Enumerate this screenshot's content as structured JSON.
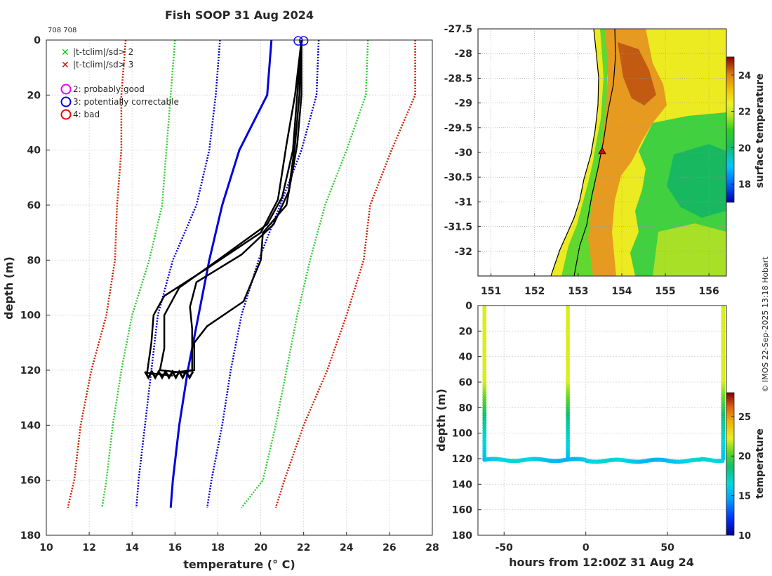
{
  "figure": {
    "title": "Fish SOOP 31 Aug 2024",
    "id_label": "708 708",
    "credit": "© IMOS 22-Sep-2025 13:18 Hobart"
  },
  "chart_data": [
    {
      "name": "profile",
      "type": "line",
      "xlabel": "temperature (° C)",
      "ylabel": "depth (m)",
      "xlim": [
        10,
        28
      ],
      "ylim": [
        180,
        0
      ],
      "xticks": [
        "10",
        "12",
        "14",
        "16",
        "18",
        "20",
        "22",
        "24",
        "26",
        "28"
      ],
      "yticks": [
        "0",
        "20",
        "40",
        "60",
        "80",
        "100",
        "120",
        "140",
        "160",
        "180"
      ],
      "legend": [
        {
          "symbol": "x",
          "color": "#00cc00",
          "label": "|t-tclim|/sd> 2"
        },
        {
          "symbol": "x",
          "color": "#dd0000",
          "label": "|t-tclim|/sd> 3"
        },
        {
          "symbol": "o",
          "color": "#ee00ee",
          "label": "2: probably good"
        },
        {
          "symbol": "o",
          "color": "#0000dd",
          "label": "3: potentially correctable"
        },
        {
          "symbol": "o",
          "color": "#ee0000",
          "label": "4: bad"
        }
      ],
      "climatology": {
        "depth": [
          0,
          20,
          40,
          60,
          80,
          100,
          120,
          140,
          160,
          170
        ],
        "mean": [
          20.5,
          20.3,
          19.0,
          18.2,
          17.6,
          17.1,
          16.6,
          16.2,
          15.9,
          15.8
        ],
        "upper_sd2": [
          22.7,
          22.6,
          21.9,
          20.9,
          19.9,
          19.1,
          18.6,
          18.2,
          17.7,
          17.5
        ],
        "lower_sd2": [
          18.1,
          17.9,
          17.6,
          17.0,
          15.9,
          15.2,
          14.9,
          14.6,
          14.3,
          14.2
        ],
        "upper_sd3": [
          25.0,
          24.9,
          24.0,
          23.0,
          22.3,
          21.7,
          21.2,
          20.7,
          20.1,
          19.1
        ],
        "lower_sd3": [
          16.0,
          15.8,
          15.6,
          15.4,
          14.8,
          14.0,
          13.5,
          13.1,
          12.8,
          12.6
        ],
        "upper_sd4": [
          27.2,
          27.2,
          26.1,
          25.1,
          24.8,
          24.0,
          23.1,
          22.0,
          21.1,
          20.7
        ],
        "lower_sd4": [
          13.7,
          13.5,
          13.5,
          13.3,
          13.2,
          12.8,
          12.1,
          11.6,
          11.3,
          11.0
        ]
      },
      "profiles": [
        {
          "temp": [
            21.9,
            21.6,
            21.2,
            20.8,
            20.0,
            17.5,
            15.5,
            15.0,
            14.9,
            14.7,
            15.9
          ],
          "depth": [
            0,
            20,
            38,
            58,
            70,
            83,
            93,
            100,
            110,
            121,
            122
          ]
        },
        {
          "temp": [
            21.9,
            21.7,
            21.5,
            21.0,
            20.3,
            18.0,
            16.2,
            15.5,
            15.5,
            15.3,
            16.5
          ],
          "depth": [
            0,
            20,
            40,
            57,
            67,
            80,
            90,
            100,
            112,
            120,
            121
          ]
        },
        {
          "temp": [
            21.9,
            21.8,
            21.6,
            21.3,
            20.6,
            19.1,
            17.0,
            16.7,
            16.8,
            16.8,
            15.8
          ],
          "depth": [
            0,
            20,
            38,
            55,
            67,
            78,
            88,
            97,
            105,
            120,
            121
          ]
        },
        {
          "temp": [
            21.9,
            21.9,
            21.7,
            21.2,
            20.1,
            20.0,
            19.2,
            17.5,
            16.9,
            16.9,
            16.2
          ],
          "depth": [
            0,
            20,
            38,
            60,
            70,
            80,
            95,
            104,
            110,
            120,
            121
          ]
        }
      ]
    },
    {
      "name": "sst_map",
      "type": "heatmap",
      "xlim": [
        150.7,
        156.4
      ],
      "ylim": [
        -32.5,
        -27.5
      ],
      "xticks": [
        "151",
        "152",
        "153",
        "154",
        "155",
        "156"
      ],
      "yticks": [
        "-27.5",
        "-28",
        "-28.5",
        "-29",
        "-29.5",
        "-30",
        "-30.5",
        "-31",
        "-31.5",
        "-32"
      ],
      "colorbar_label": "surface temperature",
      "colorbar_range": [
        17,
        25
      ],
      "colorbar_ticks": [
        "18",
        "20",
        "22",
        "24"
      ],
      "marker": {
        "lon": 153.55,
        "lat": -29.97
      }
    },
    {
      "name": "time_depth",
      "type": "scatter",
      "xlabel": "hours from 12:00Z 31 Aug 24",
      "ylabel": "depth (m)",
      "xlim": [
        -66,
        86
      ],
      "ylim": [
        180,
        0
      ],
      "xticks": [
        "-50",
        "0",
        "50"
      ],
      "yticks": [
        "0",
        "20",
        "40",
        "60",
        "80",
        "100",
        "120",
        "140",
        "160",
        "180"
      ],
      "colorbar_label": "temperature",
      "colorbar_range": [
        10,
        28
      ],
      "colorbar_ticks": [
        "10",
        "15",
        "20",
        "25"
      ],
      "casts_hours": [
        -62,
        -11,
        84
      ],
      "bottom_depth": 121
    }
  ]
}
